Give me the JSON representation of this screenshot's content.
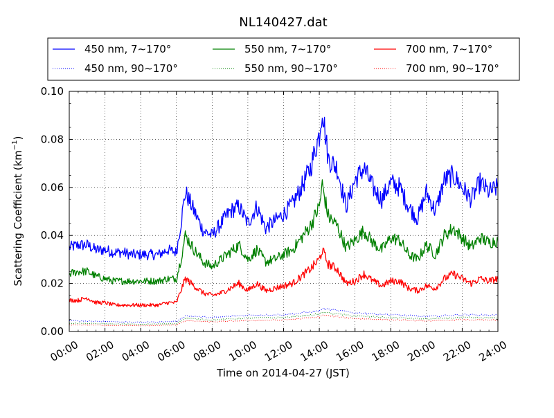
{
  "chart_data": {
    "type": "line",
    "title": "NL140427.dat",
    "xlabel": "Time on 2014-04-27 (JST)",
    "ylabel": {
      "base": "Scattering Coefficient (km",
      "sup": "−1",
      "close": ")"
    },
    "xlim": [
      "00:00",
      "24:00"
    ],
    "xticks": [
      "00:00",
      "02:00",
      "04:00",
      "06:00",
      "08:00",
      "10:00",
      "12:00",
      "14:00",
      "16:00",
      "18:00",
      "20:00",
      "22:00",
      "24:00"
    ],
    "ylim": [
      0.0,
      0.1
    ],
    "yticks": [
      "0.00",
      "0.02",
      "0.04",
      "0.06",
      "0.08",
      "0.10"
    ],
    "grid": true,
    "legend_position": "top",
    "series": [
      {
        "name": "450 nm, 7∼170°",
        "color": "#0000ff",
        "style": "solid",
        "x": [
          "00:00",
          "00:30",
          "01:00",
          "01:30",
          "02:00",
          "02:30",
          "03:00",
          "03:30",
          "04:00",
          "04:30",
          "05:00",
          "05:30",
          "06:00",
          "06:15",
          "06:30",
          "07:00",
          "07:30",
          "08:00",
          "08:30",
          "09:00",
          "09:30",
          "10:00",
          "10:30",
          "11:00",
          "11:30",
          "12:00",
          "12:30",
          "13:00",
          "13:30",
          "14:00",
          "14:10",
          "14:30",
          "15:00",
          "15:30",
          "16:00",
          "16:30",
          "17:00",
          "17:30",
          "18:00",
          "18:30",
          "19:00",
          "19:30",
          "20:00",
          "20:30",
          "21:00",
          "21:30",
          "22:00",
          "22:30",
          "23:00",
          "23:30",
          "24:00"
        ],
        "y": [
          0.035,
          0.036,
          0.036,
          0.034,
          0.034,
          0.033,
          0.033,
          0.032,
          0.032,
          0.032,
          0.032,
          0.034,
          0.033,
          0.045,
          0.058,
          0.05,
          0.042,
          0.04,
          0.045,
          0.05,
          0.052,
          0.045,
          0.052,
          0.043,
          0.046,
          0.049,
          0.053,
          0.06,
          0.068,
          0.082,
          0.093,
          0.072,
          0.068,
          0.052,
          0.063,
          0.068,
          0.06,
          0.055,
          0.062,
          0.06,
          0.052,
          0.047,
          0.058,
          0.05,
          0.063,
          0.065,
          0.06,
          0.055,
          0.062,
          0.058,
          0.06
        ]
      },
      {
        "name": "550 nm, 7∼170°",
        "color": "#008000",
        "style": "solid",
        "x": [
          "00:00",
          "00:30",
          "01:00",
          "01:30",
          "02:00",
          "02:30",
          "03:00",
          "03:30",
          "04:00",
          "04:30",
          "05:00",
          "05:30",
          "06:00",
          "06:15",
          "06:30",
          "07:00",
          "07:30",
          "08:00",
          "08:30",
          "09:00",
          "09:30",
          "10:00",
          "10:30",
          "11:00",
          "11:30",
          "12:00",
          "12:30",
          "13:00",
          "13:30",
          "14:00",
          "14:10",
          "14:30",
          "15:00",
          "15:30",
          "16:00",
          "16:30",
          "17:00",
          "17:30",
          "18:00",
          "18:30",
          "19:00",
          "19:30",
          "20:00",
          "20:30",
          "21:00",
          "21:30",
          "22:00",
          "22:30",
          "23:00",
          "23:30",
          "24:00"
        ],
        "y": [
          0.024,
          0.025,
          0.025,
          0.023,
          0.022,
          0.021,
          0.021,
          0.021,
          0.021,
          0.021,
          0.021,
          0.022,
          0.022,
          0.03,
          0.04,
          0.034,
          0.029,
          0.027,
          0.03,
          0.033,
          0.036,
          0.03,
          0.034,
          0.029,
          0.03,
          0.032,
          0.034,
          0.039,
          0.044,
          0.052,
          0.061,
          0.048,
          0.044,
          0.035,
          0.038,
          0.042,
          0.037,
          0.034,
          0.039,
          0.038,
          0.032,
          0.03,
          0.036,
          0.032,
          0.04,
          0.043,
          0.039,
          0.035,
          0.039,
          0.037,
          0.038
        ]
      },
      {
        "name": "700 nm, 7∼170°",
        "color": "#ff0000",
        "style": "solid",
        "x": [
          "00:00",
          "00:30",
          "01:00",
          "01:30",
          "02:00",
          "02:30",
          "03:00",
          "03:30",
          "04:00",
          "04:30",
          "05:00",
          "05:30",
          "06:00",
          "06:15",
          "06:30",
          "07:00",
          "07:30",
          "08:00",
          "08:30",
          "09:00",
          "09:30",
          "10:00",
          "10:30",
          "11:00",
          "11:30",
          "12:00",
          "12:30",
          "13:00",
          "13:30",
          "14:00",
          "14:10",
          "14:30",
          "15:00",
          "15:30",
          "16:00",
          "16:30",
          "17:00",
          "17:30",
          "18:00",
          "18:30",
          "19:00",
          "19:30",
          "20:00",
          "20:30",
          "21:00",
          "21:30",
          "22:00",
          "22:30",
          "23:00",
          "23:30",
          "24:00"
        ],
        "y": [
          0.013,
          0.013,
          0.014,
          0.012,
          0.012,
          0.011,
          0.011,
          0.011,
          0.011,
          0.011,
          0.011,
          0.012,
          0.012,
          0.017,
          0.022,
          0.019,
          0.016,
          0.015,
          0.016,
          0.018,
          0.02,
          0.017,
          0.02,
          0.017,
          0.018,
          0.019,
          0.02,
          0.023,
          0.026,
          0.03,
          0.034,
          0.028,
          0.026,
          0.02,
          0.021,
          0.024,
          0.021,
          0.019,
          0.021,
          0.021,
          0.018,
          0.017,
          0.019,
          0.018,
          0.022,
          0.024,
          0.022,
          0.02,
          0.022,
          0.021,
          0.022
        ]
      },
      {
        "name": "450 nm, 90∼170°",
        "color": "#0000ff",
        "style": "dotted",
        "x": [
          "00:00",
          "02:00",
          "04:00",
          "06:00",
          "06:30",
          "08:00",
          "10:00",
          "12:00",
          "14:00",
          "14:10",
          "16:00",
          "18:00",
          "20:00",
          "22:00",
          "24:00"
        ],
        "y": [
          0.0045,
          0.0042,
          0.0038,
          0.0042,
          0.0065,
          0.0058,
          0.0068,
          0.007,
          0.0085,
          0.0095,
          0.0078,
          0.007,
          0.0062,
          0.007,
          0.0068
        ]
      },
      {
        "name": "550 nm, 90∼170°",
        "color": "#008000",
        "style": "dotted",
        "x": [
          "00:00",
          "02:00",
          "04:00",
          "06:00",
          "06:30",
          "08:00",
          "10:00",
          "12:00",
          "14:00",
          "14:10",
          "16:00",
          "18:00",
          "20:00",
          "22:00",
          "24:00"
        ],
        "y": [
          0.0035,
          0.0032,
          0.003,
          0.0033,
          0.0055,
          0.0048,
          0.0056,
          0.0058,
          0.0072,
          0.008,
          0.0064,
          0.0058,
          0.0052,
          0.0058,
          0.0056
        ]
      },
      {
        "name": "700 nm, 90∼170°",
        "color": "#ff0000",
        "style": "dotted",
        "x": [
          "00:00",
          "02:00",
          "04:00",
          "06:00",
          "06:30",
          "08:00",
          "10:00",
          "12:00",
          "14:00",
          "14:10",
          "16:00",
          "18:00",
          "20:00",
          "22:00",
          "24:00"
        ],
        "y": [
          0.0028,
          0.0026,
          0.0024,
          0.0027,
          0.0045,
          0.004,
          0.0046,
          0.0048,
          0.006,
          0.0068,
          0.0054,
          0.0049,
          0.0044,
          0.0049,
          0.0047
        ]
      }
    ]
  }
}
